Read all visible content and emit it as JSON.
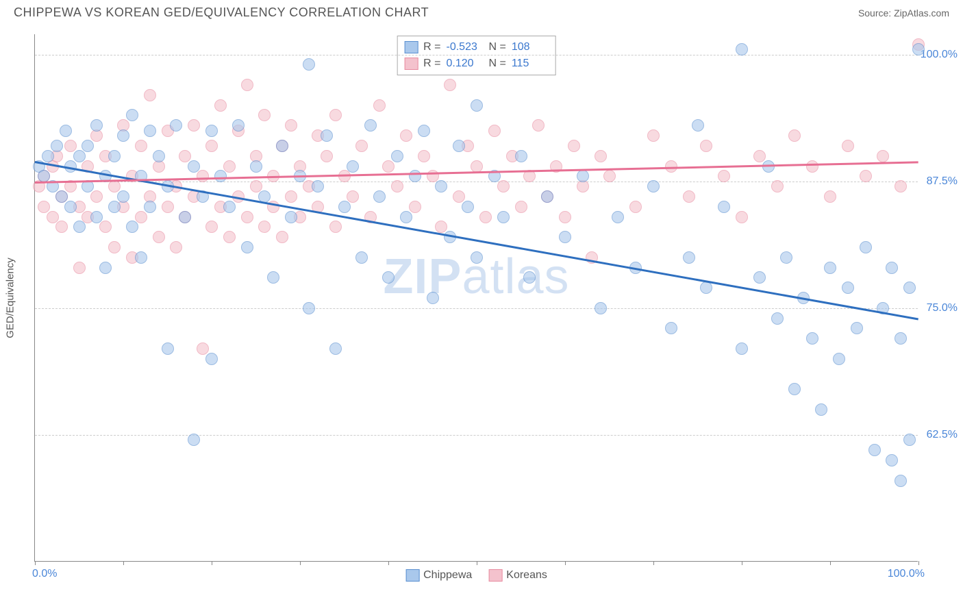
{
  "header": {
    "title": "CHIPPEWA VS KOREAN GED/EQUIVALENCY CORRELATION CHART",
    "source_label": "Source: ",
    "source_value": "ZipAtlas.com"
  },
  "watermark": {
    "bold": "ZIP",
    "rest": "atlas"
  },
  "chart": {
    "type": "scatter",
    "yaxis_title": "GED/Equivalency",
    "background_color": "#ffffff",
    "grid_color": "#cccccc",
    "axis_color": "#888888",
    "xlim": [
      0,
      100
    ],
    "ylim": [
      50,
      102
    ],
    "xaxis_labels": {
      "left": "0.0%",
      "right": "100.0%"
    },
    "xtick_positions": [
      0,
      10,
      20,
      30,
      40,
      50,
      60,
      70,
      80,
      90,
      100
    ],
    "yticks": [
      {
        "value": 62.5,
        "label": "62.5%"
      },
      {
        "value": 75.0,
        "label": "75.0%"
      },
      {
        "value": 87.5,
        "label": "87.5%"
      },
      {
        "value": 100.0,
        "label": "100.0%"
      }
    ],
    "ytick_color": "#4a86d8",
    "point_radius": 9,
    "series": [
      {
        "name": "Chippewa",
        "fill_color": "#a9c8ec",
        "stroke_color": "#5a8fd0",
        "fill_opacity": 0.6,
        "R": "-0.523",
        "N": "108",
        "trendline": {
          "x1": 0,
          "y1": 89.5,
          "x2": 100,
          "y2": 74.0,
          "color": "#2e6fbf",
          "width": 2.5
        },
        "points": [
          [
            0.5,
            89
          ],
          [
            1,
            88
          ],
          [
            1.5,
            90
          ],
          [
            2,
            87
          ],
          [
            2.5,
            91
          ],
          [
            3,
            86
          ],
          [
            3.5,
            92.5
          ],
          [
            4,
            85
          ],
          [
            4,
            89
          ],
          [
            5,
            90
          ],
          [
            5,
            83
          ],
          [
            6,
            91
          ],
          [
            6,
            87
          ],
          [
            7,
            84
          ],
          [
            7,
            93
          ],
          [
            8,
            88
          ],
          [
            8,
            79
          ],
          [
            9,
            90
          ],
          [
            9,
            85
          ],
          [
            10,
            92
          ],
          [
            10,
            86
          ],
          [
            11,
            83
          ],
          [
            11,
            94
          ],
          [
            12,
            88
          ],
          [
            12,
            80
          ],
          [
            13,
            92.5
          ],
          [
            13,
            85
          ],
          [
            14,
            90
          ],
          [
            15,
            87
          ],
          [
            15,
            71
          ],
          [
            16,
            93
          ],
          [
            17,
            84
          ],
          [
            18,
            62
          ],
          [
            18,
            89
          ],
          [
            19,
            86
          ],
          [
            20,
            92.5
          ],
          [
            20,
            70
          ],
          [
            21,
            88
          ],
          [
            22,
            85
          ],
          [
            23,
            93
          ],
          [
            24,
            81
          ],
          [
            25,
            89
          ],
          [
            26,
            86
          ],
          [
            27,
            78
          ],
          [
            28,
            91
          ],
          [
            29,
            84
          ],
          [
            30,
            88
          ],
          [
            31,
            99
          ],
          [
            31,
            75
          ],
          [
            32,
            87
          ],
          [
            33,
            92
          ],
          [
            34,
            71
          ],
          [
            35,
            85
          ],
          [
            36,
            89
          ],
          [
            37,
            80
          ],
          [
            38,
            93
          ],
          [
            39,
            86
          ],
          [
            40,
            78
          ],
          [
            41,
            90
          ],
          [
            42,
            84
          ],
          [
            43,
            88
          ],
          [
            44,
            92.5
          ],
          [
            45,
            76
          ],
          [
            46,
            87
          ],
          [
            47,
            82
          ],
          [
            48,
            91
          ],
          [
            49,
            85
          ],
          [
            50,
            95
          ],
          [
            50,
            80
          ],
          [
            52,
            88
          ],
          [
            53,
            84
          ],
          [
            55,
            90
          ],
          [
            56,
            78
          ],
          [
            58,
            86
          ],
          [
            60,
            82
          ],
          [
            62,
            88
          ],
          [
            64,
            75
          ],
          [
            66,
            84
          ],
          [
            68,
            79
          ],
          [
            70,
            87
          ],
          [
            72,
            73
          ],
          [
            74,
            80
          ],
          [
            75,
            93
          ],
          [
            76,
            77
          ],
          [
            78,
            85
          ],
          [
            80,
            100.5
          ],
          [
            80,
            71
          ],
          [
            82,
            78
          ],
          [
            83,
            89
          ],
          [
            84,
            74
          ],
          [
            85,
            80
          ],
          [
            86,
            67
          ],
          [
            87,
            76
          ],
          [
            88,
            72
          ],
          [
            89,
            65
          ],
          [
            90,
            79
          ],
          [
            91,
            70
          ],
          [
            92,
            77
          ],
          [
            93,
            73
          ],
          [
            94,
            81
          ],
          [
            95,
            61
          ],
          [
            96,
            75
          ],
          [
            97,
            60
          ],
          [
            97,
            79
          ],
          [
            98,
            58
          ],
          [
            98,
            72
          ],
          [
            99,
            62
          ],
          [
            99,
            77
          ],
          [
            100,
            100.5
          ]
        ]
      },
      {
        "name": "Koreans",
        "fill_color": "#f4c2cd",
        "stroke_color": "#e88ba0",
        "fill_opacity": 0.6,
        "R": "0.120",
        "N": "115",
        "trendline": {
          "x1": 0,
          "y1": 87.5,
          "x2": 100,
          "y2": 89.5,
          "color": "#e76f93",
          "width": 2.5
        },
        "points": [
          [
            0.5,
            87
          ],
          [
            1,
            88
          ],
          [
            1,
            85
          ],
          [
            2,
            89
          ],
          [
            2,
            84
          ],
          [
            2.5,
            90
          ],
          [
            3,
            86
          ],
          [
            3,
            83
          ],
          [
            4,
            91
          ],
          [
            4,
            87
          ],
          [
            5,
            85
          ],
          [
            5,
            79
          ],
          [
            6,
            89
          ],
          [
            6,
            84
          ],
          [
            7,
            92
          ],
          [
            7,
            86
          ],
          [
            8,
            83
          ],
          [
            8,
            90
          ],
          [
            9,
            87
          ],
          [
            9,
            81
          ],
          [
            10,
            93
          ],
          [
            10,
            85
          ],
          [
            11,
            88
          ],
          [
            11,
            80
          ],
          [
            12,
            91
          ],
          [
            12,
            84
          ],
          [
            13,
            86
          ],
          [
            13,
            96
          ],
          [
            14,
            82
          ],
          [
            14,
            89
          ],
          [
            15,
            85
          ],
          [
            15,
            92.5
          ],
          [
            16,
            87
          ],
          [
            16,
            81
          ],
          [
            17,
            90
          ],
          [
            17,
            84
          ],
          [
            18,
            93
          ],
          [
            18,
            86
          ],
          [
            19,
            88
          ],
          [
            19,
            71
          ],
          [
            20,
            91
          ],
          [
            20,
            83
          ],
          [
            21,
            95
          ],
          [
            21,
            85
          ],
          [
            22,
            89
          ],
          [
            22,
            82
          ],
          [
            23,
            92.5
          ],
          [
            23,
            86
          ],
          [
            24,
            84
          ],
          [
            24,
            97
          ],
          [
            25,
            90
          ],
          [
            25,
            87
          ],
          [
            26,
            83
          ],
          [
            26,
            94
          ],
          [
            27,
            88
          ],
          [
            27,
            85
          ],
          [
            28,
            91
          ],
          [
            28,
            82
          ],
          [
            29,
            86
          ],
          [
            29,
            93
          ],
          [
            30,
            89
          ],
          [
            30,
            84
          ],
          [
            31,
            87
          ],
          [
            32,
            92
          ],
          [
            32,
            85
          ],
          [
            33,
            90
          ],
          [
            34,
            83
          ],
          [
            34,
            94
          ],
          [
            35,
            88
          ],
          [
            36,
            86
          ],
          [
            37,
            91
          ],
          [
            38,
            84
          ],
          [
            39,
            95
          ],
          [
            40,
            89
          ],
          [
            41,
            87
          ],
          [
            42,
            92
          ],
          [
            43,
            85
          ],
          [
            44,
            90
          ],
          [
            45,
            88
          ],
          [
            46,
            83
          ],
          [
            47,
            97
          ],
          [
            48,
            86
          ],
          [
            49,
            91
          ],
          [
            50,
            89
          ],
          [
            51,
            84
          ],
          [
            52,
            92.5
          ],
          [
            53,
            87
          ],
          [
            54,
            90
          ],
          [
            55,
            85
          ],
          [
            56,
            88
          ],
          [
            57,
            93
          ],
          [
            58,
            86
          ],
          [
            59,
            89
          ],
          [
            60,
            84
          ],
          [
            61,
            91
          ],
          [
            62,
            87
          ],
          [
            63,
            80
          ],
          [
            64,
            90
          ],
          [
            65,
            88
          ],
          [
            68,
            85
          ],
          [
            70,
            92
          ],
          [
            72,
            89
          ],
          [
            74,
            86
          ],
          [
            76,
            91
          ],
          [
            78,
            88
          ],
          [
            80,
            84
          ],
          [
            82,
            90
          ],
          [
            84,
            87
          ],
          [
            86,
            92
          ],
          [
            88,
            89
          ],
          [
            90,
            86
          ],
          [
            92,
            91
          ],
          [
            94,
            88
          ],
          [
            96,
            90
          ],
          [
            98,
            87
          ],
          [
            100,
            101
          ]
        ]
      }
    ],
    "bottom_legend": [
      {
        "label": "Chippewa",
        "fill": "#a9c8ec",
        "stroke": "#5a8fd0"
      },
      {
        "label": "Koreans",
        "fill": "#f4c2cd",
        "stroke": "#e88ba0"
      }
    ]
  }
}
